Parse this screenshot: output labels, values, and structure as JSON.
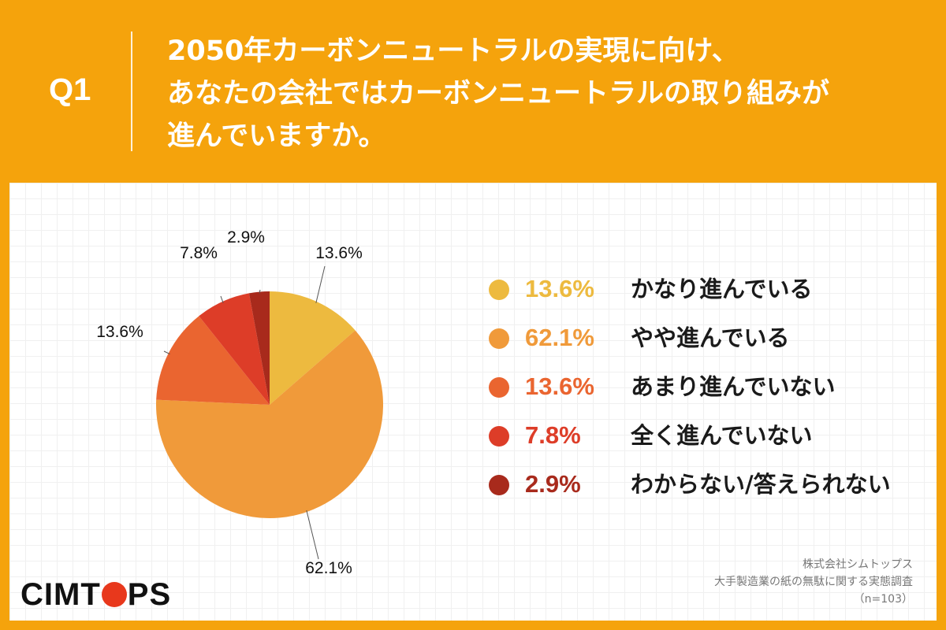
{
  "header": {
    "q_label": "Q1",
    "question_lines": [
      "2050年カーボンニュートラルの実現に向け、",
      "あなたの会社ではカーボンニュートラルの取り組みが",
      "進んでいますか。"
    ]
  },
  "colors": {
    "background": "#F5A30C",
    "slices": [
      "#EDBA3F",
      "#F09A3A",
      "#EA6530",
      "#DD3D28",
      "#A82A1C"
    ]
  },
  "chart_data": {
    "type": "pie",
    "categories": [
      "かなり進んでいる",
      "やや進んでいる",
      "あまり進んでいない",
      "全く進んでいない",
      "わからない/答えられない"
    ],
    "values": [
      13.6,
      62.1,
      13.6,
      7.8,
      2.9
    ],
    "data_labels": [
      "13.6%",
      "62.1%",
      "13.6%",
      "7.8%",
      "2.9%"
    ],
    "start_angle": "12 o'clock",
    "direction": "clockwise",
    "legend_placement": "right"
  },
  "legend": [
    {
      "pct": "13.6%",
      "label": "かなり進んでいる"
    },
    {
      "pct": "62.1%",
      "label": "やや進んでいる"
    },
    {
      "pct": "13.6%",
      "label": "あまり進んでいない"
    },
    {
      "pct": "7.8%",
      "label": "全く進んでいない"
    },
    {
      "pct": "2.9%",
      "label": "わからない/答えられない"
    }
  ],
  "logo": {
    "part1": "CIMT",
    "part2": "PS"
  },
  "source": {
    "company": "株式会社シムトップス",
    "survey": "大手製造業の紙の無駄に関する実態調査",
    "sample": "（n=103）"
  }
}
